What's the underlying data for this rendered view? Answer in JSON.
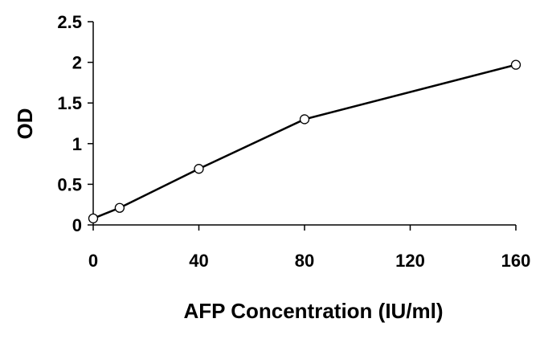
{
  "chart_data": {
    "type": "line",
    "title": "",
    "xlabel": "AFP Concentration (IU/ml)",
    "ylabel": "OD",
    "xlim": [
      0,
      160
    ],
    "ylim": [
      0,
      2.5
    ],
    "x_ticks": [
      "0",
      "40",
      "80",
      "120",
      "160"
    ],
    "y_ticks": [
      "0",
      "0.5",
      "1",
      "1.5",
      "2",
      "2.5"
    ],
    "grid": false,
    "legend": "none",
    "series": [
      {
        "x": [
          0,
          10,
          40,
          80,
          160
        ],
        "y": [
          0.08,
          0.21,
          0.69,
          1.3,
          1.97
        ]
      }
    ]
  }
}
